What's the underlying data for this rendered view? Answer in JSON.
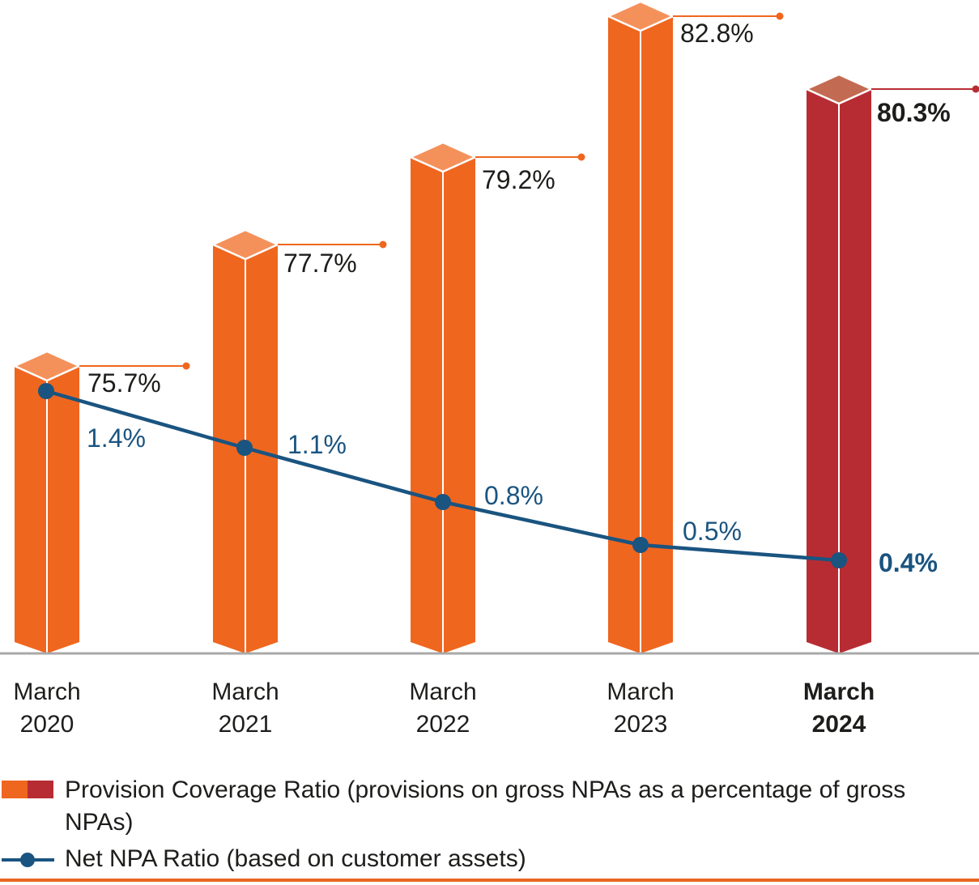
{
  "chart_data": {
    "type": "combo",
    "categories": [
      "March 2020",
      "March 2021",
      "March 2022",
      "March 2023",
      "March 2024"
    ],
    "series": [
      {
        "name": "Provision Coverage Ratio",
        "type": "bar",
        "unit": "%",
        "values": [
          75.7,
          77.7,
          79.2,
          82.8,
          80.3
        ],
        "labels": [
          "75.7%",
          "77.7%",
          "79.2%",
          "82.8%",
          "80.3%"
        ]
      },
      {
        "name": "Net NPA Ratio",
        "type": "line",
        "unit": "%",
        "values": [
          1.4,
          1.1,
          0.8,
          0.5,
          0.4
        ],
        "labels": [
          "1.4%",
          "1.1%",
          "0.8%",
          "0.5%",
          "0.4%"
        ]
      }
    ],
    "highlight_category": "March 2024",
    "axis": {
      "x_baseline_visible": true,
      "y_axis_visible": false,
      "gridlines": false
    },
    "legend_position": "bottom"
  },
  "legend": {
    "pcr_label": "Provision Coverage Ratio (provisions on gross NPAs as a percentage of gross NPAs)",
    "npa_label": "Net NPA Ratio (based on customer assets)"
  },
  "colors": {
    "bar_orange": "#EF661F",
    "bar_orange_top": "#F4915B",
    "bar_red": "#B72C32",
    "bar_red_top": "#C36B52",
    "line_blue": "#1A5480",
    "text_dark": "#1D1D1B",
    "baseline_gray": "#A8A8A8",
    "bottom_rule_orange": "#E7681F",
    "bar_edge_white": "#FFFFFF"
  }
}
